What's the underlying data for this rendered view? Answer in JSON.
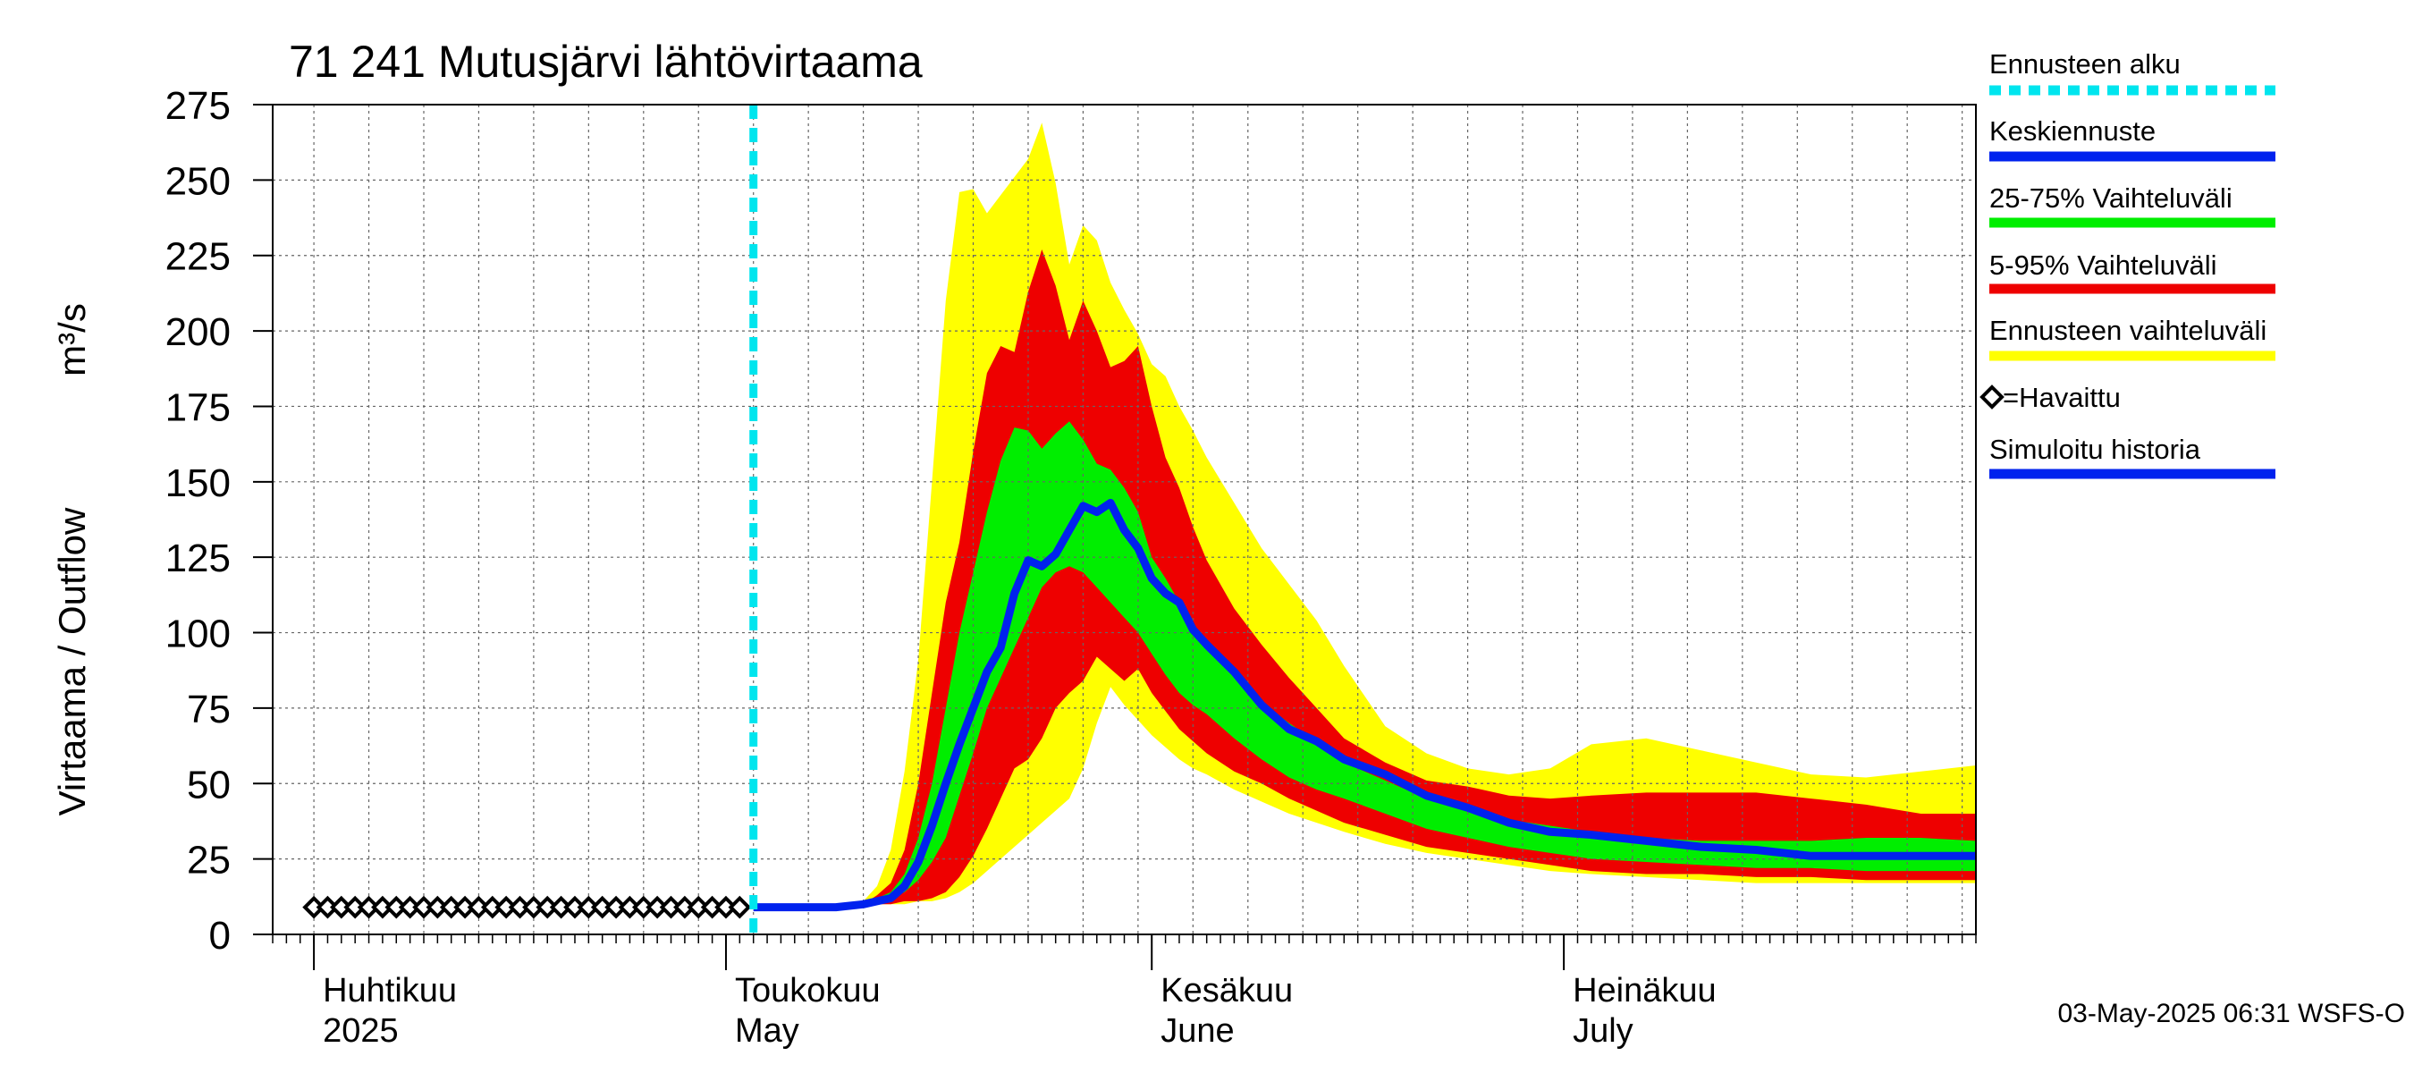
{
  "chart_data": {
    "type": "area",
    "title": "71 241 Mutusjärvi lähtövirtaama",
    "ylabel": "Virtaama / Outflow",
    "yunit": "m³/s",
    "ylim": [
      0,
      275
    ],
    "yticks": [
      0,
      25,
      50,
      75,
      100,
      125,
      150,
      175,
      200,
      225,
      250,
      275
    ],
    "xlim": [
      "2025-03-29",
      "2025-07-31"
    ],
    "grid": true,
    "month_labels": [
      {
        "date": "2025-04-01",
        "fi": "Huhtikuu",
        "en": "2025"
      },
      {
        "date": "2025-05-01",
        "fi": "Toukokuu",
        "en": "May"
      },
      {
        "date": "2025-06-01",
        "fi": "Kesäkuu",
        "en": "June"
      },
      {
        "date": "2025-07-01",
        "fi": "Heinäkuu",
        "en": "July"
      }
    ],
    "forecast_start": "2025-05-03",
    "legend": [
      {
        "label": "Ennusteen alku",
        "color": "#00e5ee",
        "style": "dashed"
      },
      {
        "label": "Keskiennuste",
        "color": "#0022ee",
        "style": "solid"
      },
      {
        "label": "25-75% Vaihteluväli",
        "color": "#00ee00",
        "style": "solid"
      },
      {
        "label": "5-95% Vaihteluväli",
        "color": "#ee0000",
        "style": "solid"
      },
      {
        "label": "Ennusteen vaihteluväli",
        "color": "#ffff00",
        "style": "solid"
      },
      {
        "label": "=Havaittu",
        "color": "#000000",
        "style": "marker"
      },
      {
        "label": "Simuloitu historia",
        "color": "#0022ee",
        "style": "solid"
      }
    ],
    "observed": {
      "dates": [
        "2025-04-01",
        "2025-04-02",
        "2025-04-03",
        "2025-04-04",
        "2025-04-05",
        "2025-04-06",
        "2025-04-07",
        "2025-04-08",
        "2025-04-09",
        "2025-04-10",
        "2025-04-11",
        "2025-04-12",
        "2025-04-13",
        "2025-04-14",
        "2025-04-15",
        "2025-04-16",
        "2025-04-17",
        "2025-04-18",
        "2025-04-19",
        "2025-04-20",
        "2025-04-21",
        "2025-04-22",
        "2025-04-23",
        "2025-04-24",
        "2025-04-25",
        "2025-04-26",
        "2025-04-27",
        "2025-04-28",
        "2025-04-29",
        "2025-04-30",
        "2025-05-01",
        "2025-05-02"
      ],
      "values": [
        9,
        9,
        9,
        9,
        9,
        9,
        9,
        9,
        9,
        9,
        9,
        9,
        9,
        9,
        9,
        9,
        9,
        9,
        9,
        9,
        9,
        9,
        9,
        9,
        9,
        9,
        9,
        9,
        9,
        9,
        9,
        9
      ]
    },
    "forecast": {
      "dates": [
        "2025-05-03",
        "2025-05-07",
        "2025-05-09",
        "2025-05-11",
        "2025-05-12",
        "2025-05-13",
        "2025-05-14",
        "2025-05-15",
        "2025-05-16",
        "2025-05-17",
        "2025-05-18",
        "2025-05-19",
        "2025-05-20",
        "2025-05-21",
        "2025-05-22",
        "2025-05-23",
        "2025-05-24",
        "2025-05-25",
        "2025-05-26",
        "2025-05-27",
        "2025-05-28",
        "2025-05-29",
        "2025-05-30",
        "2025-05-31",
        "2025-06-01",
        "2025-06-02",
        "2025-06-03",
        "2025-06-04",
        "2025-06-05",
        "2025-06-07",
        "2025-06-09",
        "2025-06-11",
        "2025-06-13",
        "2025-06-15",
        "2025-06-18",
        "2025-06-21",
        "2025-06-24",
        "2025-06-27",
        "2025-06-30",
        "2025-07-03",
        "2025-07-07",
        "2025-07-11",
        "2025-07-15",
        "2025-07-19",
        "2025-07-23",
        "2025-07-27",
        "2025-07-31"
      ],
      "min": [
        9,
        9,
        9,
        9,
        10,
        10,
        10,
        11,
        11,
        12,
        14,
        17,
        21,
        25,
        29,
        33,
        37,
        41,
        45,
        55,
        70,
        82,
        76,
        71,
        66,
        62,
        58,
        55,
        53,
        48,
        44,
        40,
        37,
        34,
        30,
        27,
        25,
        23,
        21,
        20,
        19,
        18,
        17,
        17,
        17,
        17,
        17
      ],
      "p05": [
        9,
        9,
        9,
        10,
        10,
        10,
        11,
        11,
        12,
        14,
        19,
        26,
        35,
        45,
        55,
        58,
        65,
        75,
        80,
        84,
        92,
        88,
        84,
        88,
        80,
        74,
        68,
        64,
        60,
        54,
        50,
        45,
        41,
        37,
        33,
        29,
        27,
        25,
        23,
        21,
        20,
        20,
        19,
        19,
        18,
        18,
        18
      ],
      "p25": [
        9,
        9,
        9,
        10,
        11,
        12,
        14,
        18,
        24,
        32,
        46,
        60,
        75,
        85,
        95,
        105,
        115,
        120,
        122,
        120,
        115,
        110,
        105,
        100,
        93,
        86,
        80,
        76,
        73,
        65,
        58,
        52,
        48,
        45,
        40,
        35,
        32,
        29,
        27,
        25,
        24,
        23,
        22,
        22,
        21,
        21,
        21
      ],
      "median": [
        9,
        9,
        9,
        10,
        11,
        12,
        16,
        24,
        36,
        50,
        63,
        75,
        87,
        95,
        113,
        124,
        122,
        126,
        134,
        142,
        140,
        143,
        134,
        128,
        118,
        113,
        110,
        101,
        96,
        87,
        76,
        68,
        64,
        58,
        53,
        46,
        42,
        37,
        34,
        33,
        31,
        29,
        28,
        26,
        26,
        26,
        26
      ],
      "p75": [
        9,
        9,
        9,
        10,
        12,
        14,
        20,
        32,
        50,
        75,
        100,
        120,
        140,
        157,
        168,
        167,
        161,
        166,
        170,
        164,
        156,
        154,
        148,
        140,
        125,
        118,
        110,
        103,
        96,
        86,
        77,
        70,
        64,
        57,
        51,
        45,
        41,
        38,
        36,
        34,
        32,
        31,
        31,
        31,
        32,
        32,
        31
      ],
      "p95": [
        9,
        9,
        9,
        10,
        13,
        17,
        28,
        50,
        80,
        110,
        130,
        160,
        186,
        195,
        193,
        213,
        227,
        215,
        197,
        210,
        200,
        188,
        190,
        195,
        175,
        158,
        148,
        135,
        124,
        108,
        96,
        85,
        75,
        65,
        57,
        51,
        49,
        46,
        45,
        46,
        47,
        47,
        47,
        45,
        43,
        40,
        40
      ],
      "max": [
        9,
        9,
        9,
        11,
        16,
        28,
        54,
        91,
        150,
        210,
        246,
        247,
        239,
        245,
        251,
        257,
        269,
        249,
        222,
        235,
        230,
        216,
        207,
        199,
        189,
        185,
        175,
        167,
        158,
        143,
        128,
        116,
        104,
        89,
        69,
        60,
        55,
        53,
        55,
        63,
        65,
        61,
        57,
        53,
        52,
        54,
        56
      ]
    }
  },
  "footer": "03-May-2025 06:31 WSFS-O"
}
